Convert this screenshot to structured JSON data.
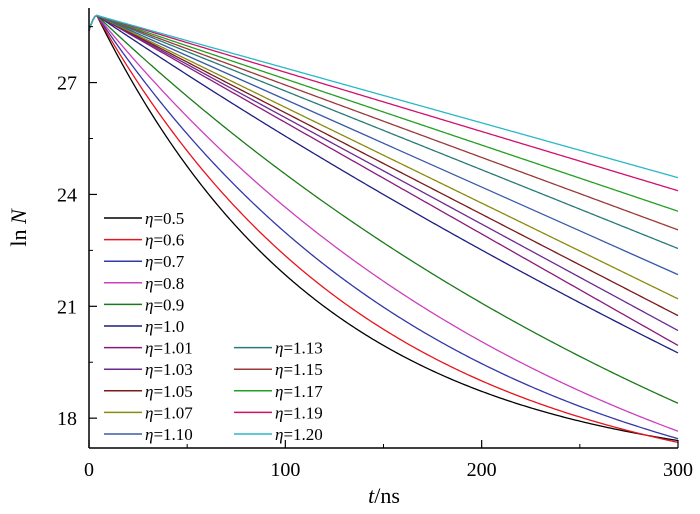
{
  "chart_data": {
    "type": "line",
    "title": "",
    "xlabel_parts": [
      "t",
      "/ns"
    ],
    "ylabel_parts": [
      "ln ",
      "N"
    ],
    "xlim": [
      0,
      300
    ],
    "ylim": [
      17.2,
      29
    ],
    "x_ticks": [
      0,
      100,
      200,
      300
    ],
    "y_ticks": [
      18,
      21,
      24,
      27
    ],
    "grid": false,
    "legend_position": "left-bottom",
    "peak": {
      "x": 4,
      "y": 28.8
    },
    "start_y": 28.4,
    "series": [
      {
        "name": "η=0.5",
        "color": "#000000",
        "y300": 17.4
      },
      {
        "name": "η=0.6",
        "color": "#e8141c",
        "y300": 17.35
      },
      {
        "name": "η=0.7",
        "color": "#3238a8",
        "y300": 17.45
      },
      {
        "name": "η=0.8",
        "color": "#cc3fbe",
        "y300": 17.65
      },
      {
        "name": "η=0.9",
        "color": "#1a7a1a",
        "y300": 18.4
      },
      {
        "name": "η=1.0",
        "color": "#1e1e80",
        "y300": 19.75
      },
      {
        "name": "η=1.01",
        "color": "#8a1a7a",
        "y300": 19.95
      },
      {
        "name": "η=1.03",
        "color": "#6a2a90",
        "y300": 20.35
      },
      {
        "name": "η=1.05",
        "color": "#7a1a1a",
        "y300": 20.75
      },
      {
        "name": "η=1.07",
        "color": "#8a8a10",
        "y300": 21.2
      },
      {
        "name": "η=1.10",
        "color": "#3a5aa8",
        "y300": 21.85
      },
      {
        "name": "η=1.13",
        "color": "#2a7a7a",
        "y300": 22.55
      },
      {
        "name": "η=1.15",
        "color": "#9a3a3a",
        "y300": 23.05
      },
      {
        "name": "η=1.17",
        "color": "#22a022",
        "y300": 23.55
      },
      {
        "name": "η=1.19",
        "color": "#d0106a",
        "y300": 24.1
      },
      {
        "name": "η=1.20",
        "color": "#2ab8c8",
        "y300": 24.45
      }
    ]
  }
}
